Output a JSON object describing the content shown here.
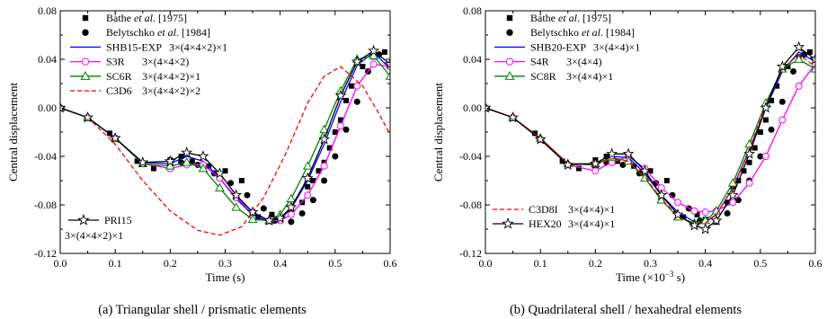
{
  "chart_data": [
    {
      "type": "line",
      "caption": "(a) Triangular shell / prismatic elements",
      "xlabel": "Time (s)",
      "ylabel": "Central displacement",
      "xlim": [
        0.0,
        0.6
      ],
      "ylim": [
        -0.12,
        0.08
      ],
      "xticks": [
        "0.0",
        "0.1",
        "0.2",
        "0.3",
        "0.4",
        "0.5",
        "0.6"
      ],
      "yticks": [
        "-0.12",
        "-0.08",
        "-0.04",
        "0.00",
        "0.04",
        "0.08"
      ],
      "grid": false,
      "series": [
        {
          "name": "Bathe et al. [1975]",
          "label_main": "Bathe ",
          "label_italic": "et al",
          "label_tail": ". [1975]",
          "mesh": "",
          "color": "#000000",
          "style": "none",
          "marker": "square",
          "x": [
            0.09,
            0.14,
            0.17,
            0.2,
            0.22,
            0.24,
            0.27,
            0.3,
            0.33,
            0.36,
            0.385,
            0.4,
            0.42,
            0.44,
            0.45,
            0.46,
            0.47,
            0.48,
            0.49,
            0.5,
            0.51,
            0.52,
            0.53,
            0.55,
            0.57,
            0.59
          ],
          "y": [
            -0.021,
            -0.044,
            -0.05,
            -0.043,
            -0.04,
            -0.044,
            -0.048,
            -0.052,
            -0.06,
            -0.09,
            -0.088,
            -0.092,
            -0.085,
            -0.078,
            -0.065,
            -0.06,
            -0.052,
            -0.045,
            -0.033,
            -0.02,
            -0.01,
            0.006,
            0.018,
            0.034,
            0.042,
            0.046
          ]
        },
        {
          "name": "Belytschko et al. [1984]",
          "label_main": "Belytschko ",
          "label_italic": "et al",
          "label_tail": ". [1984]",
          "mesh": "",
          "color": "#000000",
          "style": "none",
          "marker": "circle",
          "x": [
            0.2,
            0.22,
            0.25,
            0.28,
            0.31,
            0.34,
            0.37,
            0.39,
            0.42,
            0.44,
            0.46,
            0.48,
            0.5,
            0.52,
            0.54,
            0.56,
            0.58
          ],
          "y": [
            -0.048,
            -0.045,
            -0.047,
            -0.054,
            -0.062,
            -0.072,
            -0.083,
            -0.093,
            -0.094,
            -0.087,
            -0.076,
            -0.06,
            -0.04,
            -0.018,
            0.005,
            0.03,
            0.044
          ]
        },
        {
          "name": "SHB15-EXP",
          "label_main": "SHB15-EXP",
          "label_italic": "",
          "label_tail": "",
          "mesh": "3×(4×4×2)×1",
          "color": "#0000ff",
          "style": "solid",
          "marker": "none",
          "x": [
            0.0,
            0.05,
            0.1,
            0.15,
            0.2,
            0.23,
            0.26,
            0.29,
            0.32,
            0.35,
            0.38,
            0.4,
            0.42,
            0.45,
            0.48,
            0.51,
            0.54,
            0.57,
            0.6
          ],
          "y": [
            0.0,
            -0.008,
            -0.025,
            -0.045,
            -0.046,
            -0.04,
            -0.044,
            -0.058,
            -0.075,
            -0.088,
            -0.094,
            -0.092,
            -0.083,
            -0.06,
            -0.03,
            0.005,
            0.035,
            0.046,
            0.032
          ]
        },
        {
          "name": "S3R",
          "label_main": "S3R",
          "label_italic": "",
          "label_tail": "",
          "mesh": "3×(4×4×2)",
          "color": "#ff00ff",
          "style": "solid",
          "marker": "circle-open",
          "x": [
            0.0,
            0.05,
            0.1,
            0.15,
            0.2,
            0.23,
            0.26,
            0.29,
            0.32,
            0.35,
            0.38,
            0.4,
            0.42,
            0.45,
            0.48,
            0.51,
            0.54,
            0.57,
            0.6
          ],
          "y": [
            0.0,
            -0.008,
            -0.025,
            -0.046,
            -0.05,
            -0.047,
            -0.047,
            -0.058,
            -0.074,
            -0.086,
            -0.093,
            -0.093,
            -0.088,
            -0.072,
            -0.048,
            -0.015,
            0.018,
            0.036,
            0.034
          ]
        },
        {
          "name": "SC6R",
          "label_main": "SC6R",
          "label_italic": "",
          "label_tail": "",
          "mesh": "3×(4×4×2)×1",
          "color": "#008000",
          "style": "solid",
          "marker": "triangle-open",
          "x": [
            0.0,
            0.05,
            0.1,
            0.15,
            0.2,
            0.23,
            0.26,
            0.29,
            0.32,
            0.35,
            0.38,
            0.4,
            0.42,
            0.45,
            0.48,
            0.51,
            0.54,
            0.57,
            0.6
          ],
          "y": [
            0.0,
            -0.008,
            -0.025,
            -0.046,
            -0.048,
            -0.045,
            -0.05,
            -0.066,
            -0.082,
            -0.092,
            -0.093,
            -0.088,
            -0.075,
            -0.048,
            -0.018,
            0.014,
            0.04,
            0.043,
            0.026
          ]
        },
        {
          "name": "C3D6",
          "label_main": "C3D6",
          "label_italic": "",
          "label_tail": "",
          "mesh": "3×(4×4×2)×2",
          "color": "#ff0000",
          "style": "dashed",
          "marker": "none",
          "x": [
            0.0,
            0.05,
            0.1,
            0.15,
            0.2,
            0.25,
            0.29,
            0.33,
            0.37,
            0.41,
            0.45,
            0.48,
            0.51,
            0.55,
            0.58,
            0.6
          ],
          "y": [
            0.0,
            -0.008,
            -0.03,
            -0.06,
            -0.085,
            -0.101,
            -0.105,
            -0.098,
            -0.074,
            -0.038,
            0.004,
            0.026,
            0.034,
            0.018,
            -0.005,
            -0.022
          ]
        },
        {
          "name": "PRI15",
          "label_main": "PRI15",
          "label_italic": "",
          "label_tail": "",
          "mesh": "3×(4×4×2)×1",
          "color": "#000000",
          "style": "solid",
          "marker": "star-open",
          "x": [
            0.0,
            0.05,
            0.1,
            0.15,
            0.2,
            0.23,
            0.26,
            0.29,
            0.32,
            0.35,
            0.38,
            0.4,
            0.42,
            0.45,
            0.48,
            0.51,
            0.54,
            0.57,
            0.6
          ],
          "y": [
            0.0,
            -0.008,
            -0.025,
            -0.045,
            -0.044,
            -0.037,
            -0.04,
            -0.054,
            -0.072,
            -0.086,
            -0.093,
            -0.091,
            -0.082,
            -0.058,
            -0.026,
            0.01,
            0.038,
            0.047,
            0.036
          ]
        }
      ]
    },
    {
      "type": "line",
      "caption": "(b) Quadrilateral shell / hexahedral elements",
      "xlabel_main": "Time (×10",
      "xlabel_sup": "−3",
      "xlabel_tail": " s)",
      "ylabel": "Central displacement",
      "xlim": [
        0.0,
        0.6
      ],
      "ylim": [
        -0.12,
        0.08
      ],
      "xticks": [
        "0.0",
        "0.1",
        "0.2",
        "0.3",
        "0.4",
        "0.5",
        "0.6"
      ],
      "yticks": [
        "-0.12",
        "-0.08",
        "-0.04",
        "0.00",
        "0.04",
        "0.08"
      ],
      "grid": false,
      "series": [
        {
          "name": "Bathe et al. [1975]",
          "label_main": "Bathe ",
          "label_italic": "et al",
          "label_tail": ". [1975]",
          "mesh": "",
          "color": "#000000",
          "style": "none",
          "marker": "square",
          "x": [
            0.09,
            0.14,
            0.17,
            0.2,
            0.22,
            0.24,
            0.27,
            0.3,
            0.33,
            0.36,
            0.385,
            0.4,
            0.42,
            0.44,
            0.45,
            0.46,
            0.47,
            0.48,
            0.49,
            0.5,
            0.51,
            0.52,
            0.53,
            0.55,
            0.57,
            0.59
          ],
          "y": [
            -0.021,
            -0.044,
            -0.05,
            -0.043,
            -0.04,
            -0.044,
            -0.048,
            -0.052,
            -0.06,
            -0.09,
            -0.088,
            -0.092,
            -0.085,
            -0.078,
            -0.065,
            -0.06,
            -0.052,
            -0.045,
            -0.033,
            -0.02,
            -0.01,
            0.006,
            0.018,
            0.034,
            0.042,
            0.046
          ]
        },
        {
          "name": "Belytschko et al. [1984]",
          "label_main": "Belytschko ",
          "label_italic": "et al",
          "label_tail": ". [1984]",
          "mesh": "",
          "color": "#000000",
          "style": "none",
          "marker": "circle",
          "x": [
            0.2,
            0.22,
            0.25,
            0.28,
            0.31,
            0.34,
            0.37,
            0.39,
            0.42,
            0.44,
            0.46,
            0.48,
            0.5,
            0.52,
            0.54,
            0.56,
            0.58
          ],
          "y": [
            -0.048,
            -0.045,
            -0.047,
            -0.054,
            -0.062,
            -0.072,
            -0.083,
            -0.093,
            -0.094,
            -0.087,
            -0.076,
            -0.06,
            -0.04,
            -0.018,
            0.005,
            0.03,
            0.044
          ]
        },
        {
          "name": "SHB20-EXP",
          "label_main": "SHB20-EXP",
          "label_italic": "",
          "label_tail": "",
          "mesh": "3×(4×4)×1",
          "color": "#0000ff",
          "style": "solid",
          "marker": "none",
          "x": [
            0.0,
            0.05,
            0.1,
            0.15,
            0.2,
            0.23,
            0.26,
            0.29,
            0.32,
            0.35,
            0.38,
            0.4,
            0.42,
            0.45,
            0.48,
            0.51,
            0.54,
            0.57,
            0.6
          ],
          "y": [
            0.0,
            -0.008,
            -0.025,
            -0.046,
            -0.047,
            -0.04,
            -0.041,
            -0.054,
            -0.072,
            -0.086,
            -0.094,
            -0.094,
            -0.088,
            -0.066,
            -0.035,
            0.0,
            0.03,
            0.046,
            0.038
          ]
        },
        {
          "name": "S4R",
          "label_main": "S4R",
          "label_italic": "",
          "label_tail": "",
          "mesh": "3×(4×4)",
          "color": "#ff00ff",
          "style": "solid",
          "marker": "circle-open",
          "x": [
            0.0,
            0.05,
            0.1,
            0.15,
            0.2,
            0.23,
            0.26,
            0.29,
            0.32,
            0.35,
            0.38,
            0.4,
            0.42,
            0.45,
            0.48,
            0.51,
            0.54,
            0.57,
            0.6
          ],
          "y": [
            0.0,
            -0.008,
            -0.026,
            -0.047,
            -0.052,
            -0.045,
            -0.04,
            -0.05,
            -0.066,
            -0.078,
            -0.085,
            -0.086,
            -0.085,
            -0.078,
            -0.062,
            -0.04,
            -0.01,
            0.018,
            0.036
          ]
        },
        {
          "name": "SC8R",
          "label_main": "SC8R",
          "label_italic": "",
          "label_tail": "",
          "mesh": "3×(4×4)×1",
          "color": "#008000",
          "style": "solid",
          "marker": "triangle-open",
          "x": [
            0.0,
            0.05,
            0.1,
            0.15,
            0.2,
            0.23,
            0.26,
            0.29,
            0.32,
            0.35,
            0.38,
            0.4,
            0.42,
            0.45,
            0.48,
            0.51,
            0.54,
            0.57,
            0.6
          ],
          "y": [
            0.0,
            -0.008,
            -0.025,
            -0.046,
            -0.046,
            -0.041,
            -0.044,
            -0.058,
            -0.076,
            -0.09,
            -0.095,
            -0.093,
            -0.085,
            -0.062,
            -0.03,
            0.004,
            0.032,
            0.04,
            0.032
          ]
        },
        {
          "name": "C3D8I",
          "label_main": "C3D8I",
          "label_italic": "",
          "label_tail": "",
          "mesh": "3×(4×4)×1",
          "color": "#ff0000",
          "style": "dashed",
          "marker": "none",
          "x": [
            0.0,
            0.05,
            0.1,
            0.15,
            0.2,
            0.23,
            0.26,
            0.29,
            0.32,
            0.35,
            0.38,
            0.4,
            0.42,
            0.45,
            0.48,
            0.51,
            0.54,
            0.57,
            0.6
          ],
          "y": [
            0.0,
            -0.008,
            -0.025,
            -0.046,
            -0.047,
            -0.042,
            -0.044,
            -0.057,
            -0.075,
            -0.089,
            -0.096,
            -0.095,
            -0.088,
            -0.066,
            -0.034,
            0.002,
            0.032,
            0.044,
            0.034
          ]
        },
        {
          "name": "HEX20",
          "label_main": "HEX20",
          "label_italic": "",
          "label_tail": "",
          "mesh": "3×(4×4)×1",
          "color": "#000000",
          "style": "solid",
          "marker": "star-open",
          "x": [
            0.0,
            0.05,
            0.1,
            0.15,
            0.2,
            0.23,
            0.26,
            0.29,
            0.32,
            0.35,
            0.38,
            0.4,
            0.42,
            0.45,
            0.48,
            0.51,
            0.54,
            0.57,
            0.6
          ],
          "y": [
            0.0,
            -0.008,
            -0.026,
            -0.047,
            -0.046,
            -0.038,
            -0.038,
            -0.052,
            -0.072,
            -0.088,
            -0.097,
            -0.1,
            -0.093,
            -0.072,
            -0.038,
            0.0,
            0.034,
            0.05,
            0.04
          ]
        }
      ]
    }
  ]
}
